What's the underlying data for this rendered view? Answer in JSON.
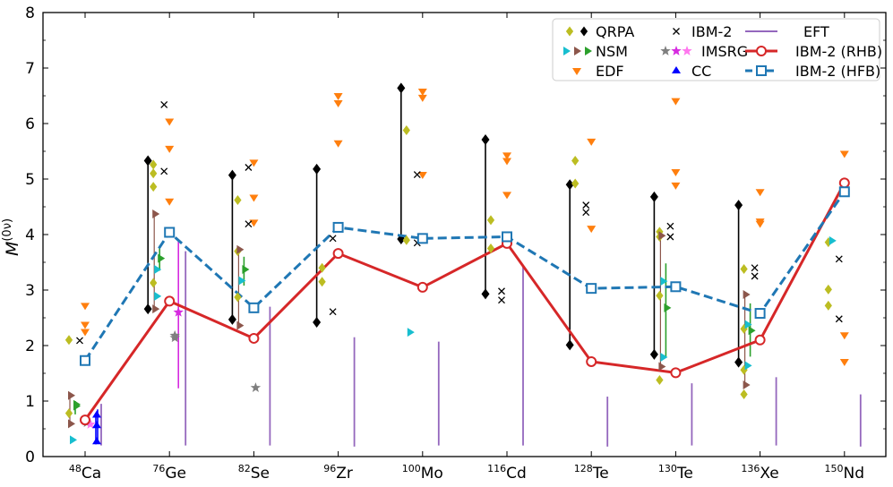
{
  "chart_data": {
    "type": "scatter",
    "ylabel": "M",
    "ylabel_sup": "(0ν)",
    "ylim": [
      0,
      8
    ],
    "yticks": [
      0,
      1,
      2,
      3,
      4,
      5,
      6,
      7,
      8
    ],
    "categories": [
      {
        "mass": "48",
        "sym": "Ca"
      },
      {
        "mass": "76",
        "sym": "Ge"
      },
      {
        "mass": "82",
        "sym": "Se"
      },
      {
        "mass": "96",
        "sym": "Zr"
      },
      {
        "mass": "100",
        "sym": "Mo"
      },
      {
        "mass": "116",
        "sym": "Cd"
      },
      {
        "mass": "128",
        "sym": "Te"
      },
      {
        "mass": "130",
        "sym": "Te"
      },
      {
        "mass": "136",
        "sym": "Xe"
      },
      {
        "mass": "150",
        "sym": "Nd"
      }
    ],
    "colors": {
      "qrpa_olive": "#bcbd22",
      "black": "#000000",
      "nsm_cyan": "#17becf",
      "nsm_brown": "#8c564b",
      "nsm_green": "#2ca02c",
      "edf": "#ff7f0e",
      "imsrg_gray": "#7f7f7f",
      "imsrg_magenta": "#d62be0",
      "imsrg_pink": "#ff77ee",
      "cc": "#0000ff",
      "eft": "#9467bd",
      "rhb": "#d62728",
      "hfb": "#1f77b4"
    },
    "legend": [
      {
        "label": "QRPA"
      },
      {
        "label": "NSM"
      },
      {
        "label": "EDF"
      },
      {
        "label": "IBM-2"
      },
      {
        "label": "IMSRG"
      },
      {
        "label": "CC"
      },
      {
        "label": "EFT"
      },
      {
        "label": "IBM-2 (RHB)"
      },
      {
        "label": "IBM-2 (HFB)"
      }
    ],
    "series": [
      {
        "name": "IBM-2 (RHB)",
        "values": [
          0.66,
          2.8,
          2.13,
          3.66,
          3.05,
          3.84,
          1.71,
          1.51,
          2.1,
          4.93
        ]
      },
      {
        "name": "IBM-2 (HFB)",
        "values": [
          1.73,
          4.04,
          2.68,
          4.13,
          3.93,
          3.96,
          3.03,
          3.06,
          2.58,
          4.77
        ]
      }
    ],
    "qrpa_ranges": [
      {
        "x": 1,
        "low": 2.66,
        "high": 5.33
      },
      {
        "x": 2,
        "low": 2.47,
        "high": 5.07
      },
      {
        "x": 3,
        "low": 2.42,
        "high": 5.18
      },
      {
        "x": 4,
        "low": 3.92,
        "high": 6.64
      },
      {
        "x": 5,
        "low": 2.93,
        "high": 5.71
      },
      {
        "x": 6,
        "low": 2.01,
        "high": 4.9
      },
      {
        "x": 7,
        "low": 1.84,
        "high": 4.68
      },
      {
        "x": 8,
        "low": 1.7,
        "high": 4.53
      }
    ],
    "qrpa_points": [
      [
        0,
        2.1
      ],
      [
        0,
        0.78
      ],
      [
        1,
        5.26
      ],
      [
        1,
        5.1
      ],
      [
        1,
        4.86
      ],
      [
        1,
        3.13
      ],
      [
        2,
        4.62
      ],
      [
        2,
        3.7
      ],
      [
        2,
        2.87
      ],
      [
        3,
        3.4
      ],
      [
        3,
        3.15
      ],
      [
        4,
        5.88
      ],
      [
        4,
        3.9
      ],
      [
        5,
        4.26
      ],
      [
        5,
        3.75
      ],
      [
        6,
        5.33
      ],
      [
        6,
        4.92
      ],
      [
        7,
        4.05
      ],
      [
        7,
        3.96
      ],
      [
        7,
        2.9
      ],
      [
        7,
        1.38
      ],
      [
        8,
        3.38
      ],
      [
        8,
        2.3
      ],
      [
        8,
        1.56
      ],
      [
        8,
        1.12
      ],
      [
        9,
        3.86
      ],
      [
        9,
        3.01
      ],
      [
        9,
        2.72
      ]
    ],
    "ibm2_points": [
      [
        0,
        2.09
      ],
      [
        1,
        6.34
      ],
      [
        1,
        5.14
      ],
      [
        2,
        5.21
      ],
      [
        2,
        4.19
      ],
      [
        3,
        3.93
      ],
      [
        3,
        2.61
      ],
      [
        4,
        5.08
      ],
      [
        4,
        3.85
      ],
      [
        5,
        2.98
      ],
      [
        5,
        2.82
      ],
      [
        6,
        4.53
      ],
      [
        6,
        4.4
      ],
      [
        7,
        4.15
      ],
      [
        7,
        3.96
      ],
      [
        8,
        3.4
      ],
      [
        8,
        3.25
      ],
      [
        9,
        3.56
      ],
      [
        9,
        2.48
      ]
    ],
    "edf_points": [
      [
        0,
        2.72
      ],
      [
        0,
        2.38
      ],
      [
        0,
        2.25
      ],
      [
        1,
        6.04
      ],
      [
        1,
        5.55
      ],
      [
        1,
        4.6
      ],
      [
        2,
        5.3
      ],
      [
        2,
        4.67
      ],
      [
        2,
        4.22
      ],
      [
        3,
        6.5
      ],
      [
        3,
        6.37
      ],
      [
        3,
        5.65
      ],
      [
        4,
        6.58
      ],
      [
        4,
        6.47
      ],
      [
        4,
        5.08
      ],
      [
        5,
        5.43
      ],
      [
        5,
        5.33
      ],
      [
        5,
        4.72
      ],
      [
        6,
        5.68
      ],
      [
        6,
        4.11
      ],
      [
        7,
        6.41
      ],
      [
        7,
        5.13
      ],
      [
        7,
        4.89
      ],
      [
        8,
        4.77
      ],
      [
        8,
        4.24
      ],
      [
        8,
        4.2
      ],
      [
        9,
        5.46
      ],
      [
        9,
        2.19
      ],
      [
        9,
        1.71
      ]
    ],
    "nsm_cyan": [
      [
        0,
        0.3
      ],
      [
        1,
        2.89
      ],
      [
        1,
        3.37
      ],
      [
        2,
        3.17
      ],
      [
        4,
        2.24
      ],
      [
        7,
        1.79
      ],
      [
        7,
        3.16
      ],
      [
        8,
        1.64
      ],
      [
        8,
        2.38
      ],
      [
        9,
        3.89
      ]
    ],
    "nsm_brown": [
      [
        0,
        1.1
      ],
      [
        0,
        0.59
      ],
      [
        1,
        4.37
      ],
      [
        1,
        2.66
      ],
      [
        2,
        3.73
      ],
      [
        2,
        2.36
      ],
      [
        7,
        3.98
      ],
      [
        7,
        1.62
      ],
      [
        8,
        2.92
      ],
      [
        8,
        1.29
      ]
    ],
    "nsm_green": [
      [
        0,
        0.94
      ],
      [
        0,
        0.91
      ],
      [
        1,
        3.57
      ],
      [
        2,
        3.37
      ],
      [
        7,
        2.68
      ],
      [
        8,
        2.27
      ]
    ],
    "nsm_green_ranges": [
      {
        "x": 0,
        "low": 0.76,
        "high": 1.0
      },
      {
        "x": 1,
        "low": 3.35,
        "high": 3.8
      },
      {
        "x": 2,
        "low": 3.08,
        "high": 3.6
      },
      {
        "x": 7,
        "low": 1.8,
        "high": 3.48
      },
      {
        "x": 8,
        "low": 1.8,
        "high": 2.76
      }
    ],
    "imsrg_gray": [
      [
        0,
        0.61
      ],
      [
        1,
        2.14
      ],
      [
        1,
        2.18
      ],
      [
        2,
        1.24
      ]
    ],
    "imsrg_magenta": [
      [
        1,
        2.6
      ]
    ],
    "imsrg_pink": [
      [
        0,
        0.58
      ]
    ],
    "imsrg_magenta_range": {
      "x": 1,
      "low": 1.23,
      "high": 3.88
    },
    "cc_points": [
      [
        0,
        0.75
      ],
      [
        0,
        0.56
      ],
      [
        0,
        0.27
      ]
    ],
    "cc_ranges": [
      {
        "x": 0,
        "low": 0.22,
        "high": 0.77
      },
      {
        "x": 0,
        "low": 0.24,
        "high": 0.85
      }
    ],
    "eft_ranges": [
      {
        "x": 0,
        "low": 0.2,
        "high": 0.95
      },
      {
        "x": 1,
        "low": 0.2,
        "high": 3.7
      },
      {
        "x": 2,
        "low": 0.2,
        "high": 2.7
      },
      {
        "x": 3,
        "low": 0.18,
        "high": 2.15
      },
      {
        "x": 4,
        "low": 0.2,
        "high": 2.07
      },
      {
        "x": 5,
        "low": 0.2,
        "high": 3.45
      },
      {
        "x": 6,
        "low": 0.18,
        "high": 1.08
      },
      {
        "x": 7,
        "low": 0.2,
        "high": 1.32
      },
      {
        "x": 8,
        "low": 0.2,
        "high": 1.43
      },
      {
        "x": 9,
        "low": 0.18,
        "high": 1.12
      }
    ]
  }
}
